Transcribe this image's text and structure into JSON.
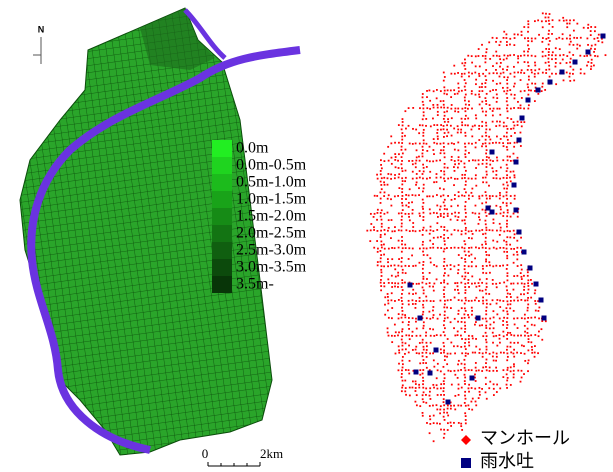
{
  "north_arrow": "N",
  "depth_legend": {
    "items": [
      {
        "label": "0.0m",
        "color": "#22ee22"
      },
      {
        "label": "0.0m-0.5m",
        "color": "#1fd41f"
      },
      {
        "label": "0.5m-1.0m",
        "color": "#1cbb1c"
      },
      {
        "label": "1.0m-1.5m",
        "color": "#19a319"
      },
      {
        "label": "1.5m-2.0m",
        "color": "#168b16"
      },
      {
        "label": "2.0m-2.5m",
        "color": "#137413"
      },
      {
        "label": "2.5m-3.0m",
        "color": "#105f10"
      },
      {
        "label": "3.0m-3.5m",
        "color": "#0c4a0c"
      },
      {
        "label": "3.5m-",
        "color": "#083508"
      }
    ]
  },
  "scale_bar": {
    "start": "0",
    "end": "2km"
  },
  "point_legend": [
    {
      "label": "マンホール",
      "color": "#ff0000",
      "shape": "diamond"
    },
    {
      "label": "雨水吐",
      "color": "#000080",
      "shape": "square"
    }
  ]
}
